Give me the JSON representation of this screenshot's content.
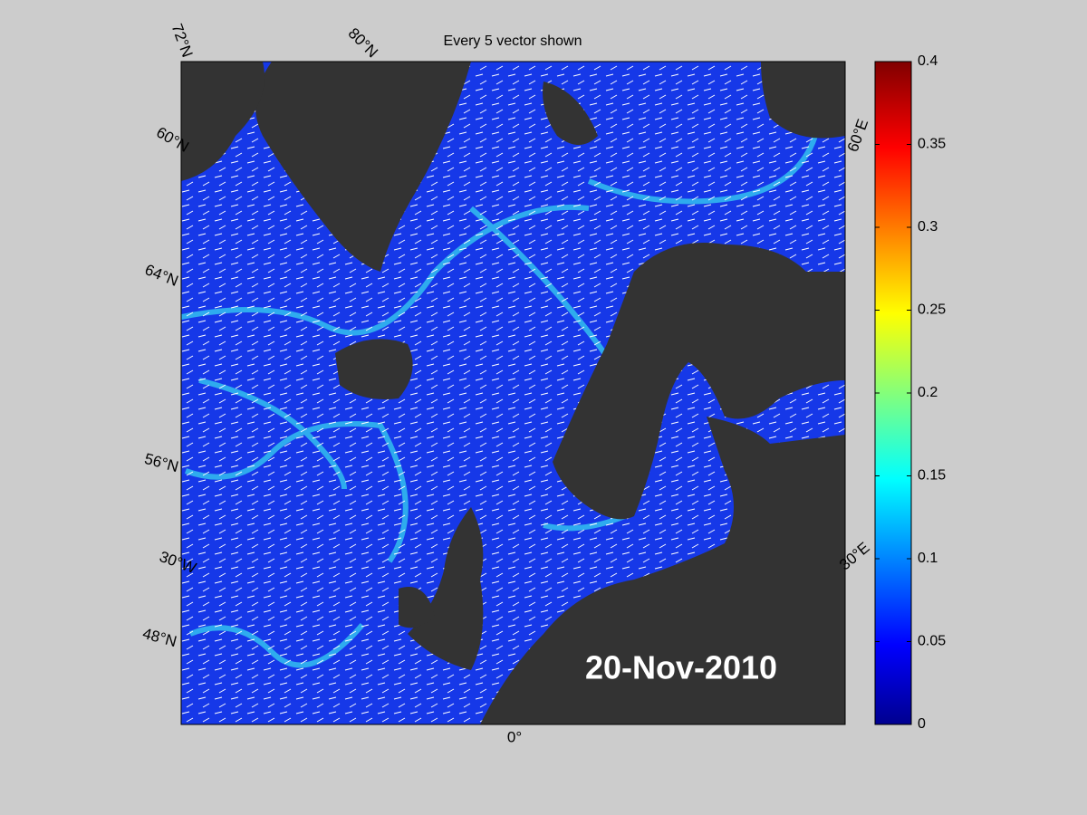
{
  "map": {
    "title": "Every 5 vector shown",
    "date": "20-Nov-2010",
    "grid_labels": [
      "72°N",
      "80°N",
      "60°N",
      "64°N",
      "56°N",
      "30°W",
      "48°N",
      "60°E",
      "30°E",
      "0°"
    ]
  },
  "colorbar": {
    "lim": [
      0,
      0.4
    ],
    "ticks": [
      0,
      0.05,
      0.1,
      0.15,
      0.2,
      0.25,
      0.3,
      0.35,
      0.4
    ]
  }
}
